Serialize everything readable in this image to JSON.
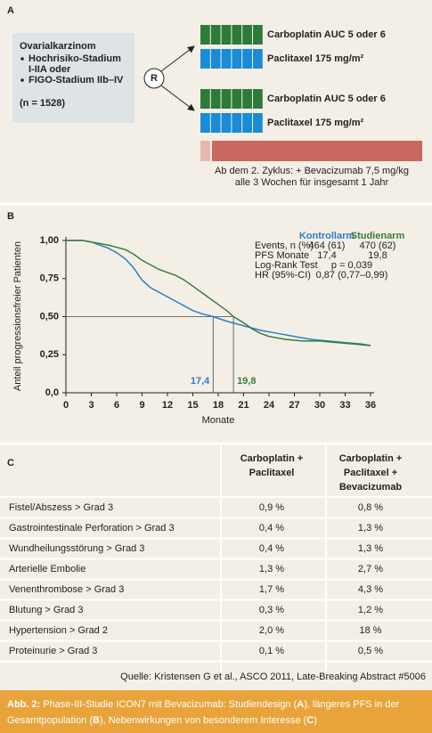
{
  "panel_a": {
    "label": "A",
    "population": {
      "title": "Ovarialkarzinom",
      "bullets": [
        [
          "Hochrisiko-Stadium",
          "I-IIA oder"
        ],
        [
          "FIGO-Stadium IIb–IV"
        ]
      ],
      "n": "(n = 1528)"
    },
    "randomization": "R",
    "arms": [
      {
        "drugs": [
          "Carboplatin AUC 5 oder 6",
          "Paclitaxel 175 mg/m²"
        ]
      },
      {
        "drugs": [
          "Carboplatin AUC 5 oder 6",
          "Paclitaxel 175 mg/m²"
        ]
      }
    ],
    "bevacizumab_note": [
      "Ab dem 2. Zyklus: + Bevacizumab 7,5 mg/kg",
      "alle 3 Wochen für insgesamt 1 Jahr"
    ]
  },
  "chart_data": {
    "type": "line",
    "panel_label": "B",
    "x_label": "Monate",
    "y_label": "Anteil progressionsfreier Patienten",
    "xlim": [
      0,
      36
    ],
    "xticks": [
      0,
      3,
      6,
      9,
      12,
      15,
      18,
      21,
      24,
      27,
      30,
      33,
      36
    ],
    "ylim": [
      0,
      1
    ],
    "yticks": [
      {
        "value": 0,
        "label": "0,0"
      },
      {
        "value": 0.25,
        "label": "0,25"
      },
      {
        "value": 0.5,
        "label": "0,50"
      },
      {
        "value": 0.75,
        "label": "0,75"
      },
      {
        "value": 1,
        "label": "1,00"
      }
    ],
    "series": [
      {
        "name": "Kontrollarm",
        "color": "#2b7fc8",
        "x": [
          0,
          2,
          3,
          4,
          5,
          6,
          7,
          8,
          9,
          10,
          11,
          12,
          13,
          14,
          15,
          16,
          17.4,
          19,
          21,
          23,
          25,
          27,
          29,
          31,
          33,
          35,
          36
        ],
        "values": [
          1,
          1,
          0.99,
          0.97,
          0.95,
          0.92,
          0.88,
          0.82,
          0.74,
          0.69,
          0.66,
          0.63,
          0.6,
          0.57,
          0.54,
          0.52,
          0.5,
          0.47,
          0.44,
          0.41,
          0.39,
          0.37,
          0.35,
          0.34,
          0.33,
          0.32,
          0.31
        ]
      },
      {
        "name": "Studienarm",
        "color": "#3a7d3a",
        "x": [
          0,
          2,
          3,
          5,
          7,
          8,
          9,
          10,
          11,
          12,
          13,
          14,
          15,
          16,
          17,
          18,
          19,
          19.8,
          21,
          22,
          23,
          24,
          25,
          26,
          28,
          30,
          32,
          34,
          36
        ],
        "values": [
          1,
          1,
          0.99,
          0.97,
          0.94,
          0.91,
          0.87,
          0.84,
          0.81,
          0.79,
          0.77,
          0.74,
          0.7,
          0.66,
          0.62,
          0.58,
          0.54,
          0.5,
          0.46,
          0.42,
          0.39,
          0.37,
          0.36,
          0.35,
          0.34,
          0.34,
          0.33,
          0.32,
          0.31
        ]
      }
    ],
    "median_level": 0.5,
    "medians": [
      {
        "value": 17.4,
        "label": "17,4",
        "color": "#2b7fc8"
      },
      {
        "value": 19.8,
        "label": "19,8",
        "color": "#3a7d3a"
      }
    ],
    "stats": {
      "rows": [
        {
          "label": "Events, n (%)",
          "values": [
            "464 (61)",
            "470 (62)"
          ]
        },
        {
          "label": "PFS Monate",
          "values": [
            "17,4",
            "19,8"
          ]
        },
        {
          "label": "Log-Rank Test",
          "value": "p = 0,039"
        },
        {
          "label": "HR (95%-CI)",
          "value": "0,87 (0,77–0,99)"
        }
      ]
    }
  },
  "table": {
    "label": "C",
    "headers": [
      [
        "Carboplatin +",
        "Paclitaxel"
      ],
      [
        "Carboplatin +",
        "Paclitaxel +",
        "Bevacizumab"
      ]
    ],
    "rows": [
      [
        "Fistel/Abszess > Grad 3",
        "0,9 %",
        "0,8 %"
      ],
      [
        "Gastrointestinale Perforation > Grad 3",
        "0,4 %",
        "1,3 %"
      ],
      [
        "Wundheilungsstörung > Grad 3",
        "0,4 %",
        "1,3 %"
      ],
      [
        "Arterielle Embolie",
        "1,3 %",
        "2,7 %"
      ],
      [
        "Venenthrombose > Grad 3",
        "1,7 %",
        "4,3 %"
      ],
      [
        "Blutung > Grad 3",
        "0,3 %",
        "1,2 %"
      ],
      [
        "Hypertension > Grad 2",
        "2,0 %",
        "18 %"
      ],
      [
        "Proteinurie > Grad 3",
        "0,1 %",
        "0,5 %"
      ]
    ],
    "source": "Quelle: Kristensen G et al., ASCO 2011, Late-Breaking Abstract #5006"
  },
  "caption": [
    [
      {
        "text": "Abb. 2:",
        "bold": true
      },
      {
        "text": " Phase-III-Studie ICON7 mit Bevacizumab: Studiendesign (",
        "bold": false
      },
      {
        "text": "A",
        "bold": true
      },
      {
        "text": "), längeres PFS in der",
        "bold": false
      }
    ],
    [
      {
        "text": "Gesamtpopulation (",
        "bold": false
      },
      {
        "text": "B",
        "bold": true
      },
      {
        "text": "), Nebenwirkungen von besonderem Interesse (",
        "bold": false
      },
      {
        "text": "C",
        "bold": true
      },
      {
        "text": ")",
        "bold": false
      }
    ]
  ]
}
